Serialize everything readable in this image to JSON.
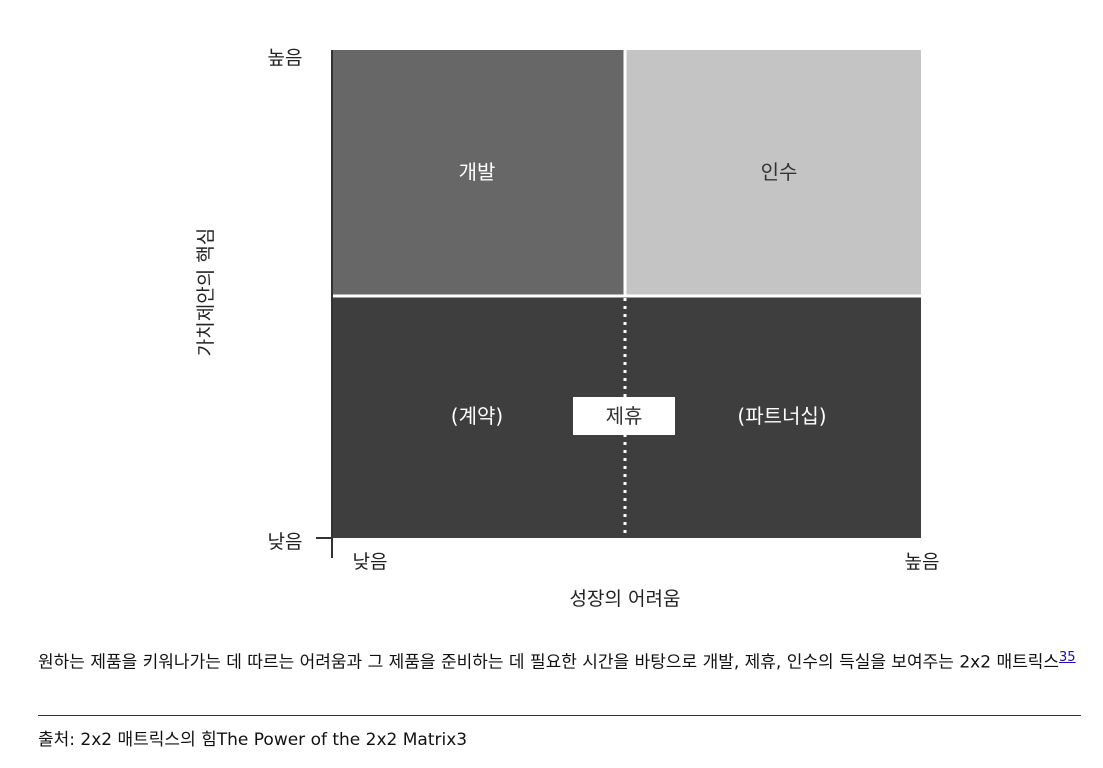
{
  "figure": {
    "y_axis_title": "가치제안의 핵심",
    "x_axis_title": "성장의 어려움",
    "y_high": "높음",
    "y_low": "낮음",
    "x_low": "낮음",
    "x_high": "높음",
    "quadrants": {
      "top_left": "개발",
      "top_right": "인수",
      "bottom_left": "(계약)",
      "bottom_center": "제휴",
      "bottom_right": "(파트너십)"
    }
  },
  "caption": {
    "text": "원하는 제품을 키워나가는 데 따르는 어려움과 그 제품을 준비하는 데 필요한 시간을 바탕으로 개발, 제휴, 인수의 득실을 보여주는 2x2 매트릭스",
    "footnote": "35"
  },
  "source": "출처: 2x2 매트릭스의 힘The Power of the 2x2 Matrix3"
}
